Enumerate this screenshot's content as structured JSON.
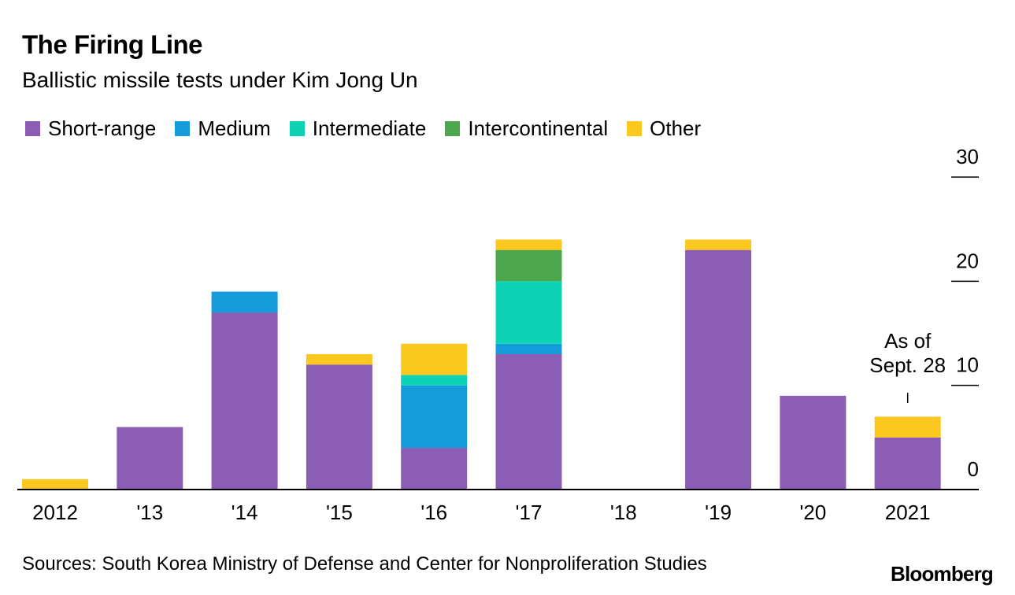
{
  "title": "The Firing Line",
  "subtitle": "Ballistic missile tests under Kim Jong Un",
  "source": "Sources: South Korea Ministry of Defense and Center for Nonproliferation Studies",
  "logo": "Bloomberg",
  "legend": [
    {
      "label": "Short-range",
      "color": "#8b5db5"
    },
    {
      "label": "Medium",
      "color": "#139bda"
    },
    {
      "label": "Intermediate",
      "color": "#0ed2b4"
    },
    {
      "label": "Intercontinental",
      "color": "#4ca64c"
    },
    {
      "label": "Other",
      "color": "#fcc820"
    }
  ],
  "chart_data": {
    "type": "bar",
    "stacked": true,
    "categories": [
      "2012",
      "'13",
      "'14",
      "'15",
      "'16",
      "'17",
      "'18",
      "'19",
      "'20",
      "2021"
    ],
    "series": [
      {
        "name": "Short-range",
        "color": "#8b5db5",
        "values": [
          0,
          6,
          17,
          12,
          4,
          13,
          0,
          23,
          9,
          5
        ]
      },
      {
        "name": "Medium",
        "color": "#139bda",
        "values": [
          0,
          0,
          2,
          0,
          6,
          1,
          0,
          0,
          0,
          0
        ]
      },
      {
        "name": "Intermediate",
        "color": "#0ed2b4",
        "values": [
          0,
          0,
          0,
          0,
          1,
          6,
          0,
          0,
          0,
          0
        ]
      },
      {
        "name": "Intercontinental",
        "color": "#4ca64c",
        "values": [
          0,
          0,
          0,
          0,
          0,
          3,
          0,
          0,
          0,
          0
        ]
      },
      {
        "name": "Other",
        "color": "#fcc820",
        "values": [
          1,
          0,
          0,
          1,
          3,
          1,
          0,
          1,
          0,
          2
        ]
      }
    ],
    "yticks": [
      0,
      10,
      20,
      30
    ],
    "ylim": [
      0,
      30
    ],
    "y_axis_position": "right",
    "annotation": {
      "lines": [
        "As of",
        "Sept. 28"
      ],
      "category": "2021"
    },
    "xlabel": "",
    "ylabel": ""
  }
}
